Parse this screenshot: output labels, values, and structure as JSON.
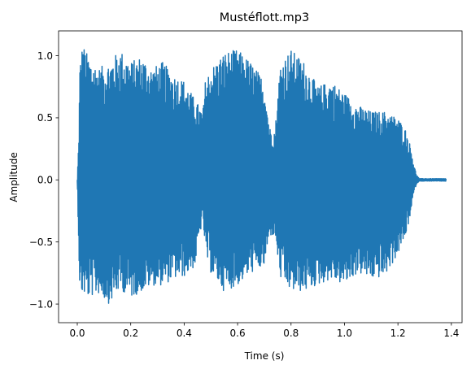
{
  "chart_data": {
    "type": "line",
    "title": "Mustéflott.mp3",
    "xlabel": "Time (s)",
    "ylabel": "Amplitude",
    "xlim": [
      -0.07,
      1.44
    ],
    "ylim": [
      -1.15,
      1.2
    ],
    "x_ticks": [
      0.0,
      0.2,
      0.4,
      0.6,
      0.8,
      1.0,
      1.2,
      1.4
    ],
    "x_tick_labels": [
      "0.0",
      "0.2",
      "0.4",
      "0.6",
      "0.8",
      "1.0",
      "1.2",
      "1.4"
    ],
    "y_ticks": [
      -1.0,
      -0.5,
      0.0,
      0.5,
      1.0
    ],
    "y_tick_labels": [
      "−1.0",
      "−0.5",
      "0.0",
      "0.5",
      "1.0"
    ],
    "grid": false,
    "series": [
      {
        "color": "#1f77b4",
        "envelope": {
          "time": [
            0.0,
            0.005,
            0.01,
            0.02,
            0.04,
            0.08,
            0.12,
            0.16,
            0.2,
            0.24,
            0.28,
            0.32,
            0.36,
            0.4,
            0.44,
            0.47,
            0.48,
            0.5,
            0.55,
            0.6,
            0.65,
            0.7,
            0.72,
            0.74,
            0.76,
            0.8,
            0.85,
            0.9,
            0.95,
            1.0,
            1.05,
            1.1,
            1.15,
            1.2,
            1.23,
            1.25,
            1.26,
            1.27,
            1.28,
            1.3,
            1.34,
            1.38
          ],
          "upper": [
            0.0,
            0.3,
            0.95,
            1.1,
            1.0,
            0.9,
            0.95,
            1.05,
            0.95,
            1.0,
            0.9,
            0.95,
            0.85,
            0.8,
            0.65,
            0.55,
            0.82,
            0.9,
            1.03,
            1.05,
            0.95,
            0.8,
            0.42,
            0.4,
            0.95,
            1.05,
            0.95,
            0.75,
            0.8,
            0.7,
            0.6,
            0.55,
            0.55,
            0.5,
            0.4,
            0.25,
            0.12,
            0.04,
            0.01,
            0.01,
            0.01,
            0.01
          ],
          "lower": [
            0.0,
            -0.5,
            -0.95,
            -0.92,
            -0.95,
            -0.92,
            -1.0,
            -0.88,
            -0.95,
            -0.9,
            -0.85,
            -0.85,
            -0.8,
            -0.78,
            -0.7,
            -0.3,
            -0.6,
            -0.75,
            -0.9,
            -0.85,
            -0.75,
            -0.7,
            -0.45,
            -0.45,
            -0.8,
            -0.9,
            -0.9,
            -0.85,
            -0.8,
            -0.85,
            -0.75,
            -0.8,
            -0.78,
            -0.6,
            -0.45,
            -0.25,
            -0.1,
            -0.03,
            -0.01,
            -0.01,
            -0.01,
            -0.01
          ]
        }
      }
    ]
  }
}
